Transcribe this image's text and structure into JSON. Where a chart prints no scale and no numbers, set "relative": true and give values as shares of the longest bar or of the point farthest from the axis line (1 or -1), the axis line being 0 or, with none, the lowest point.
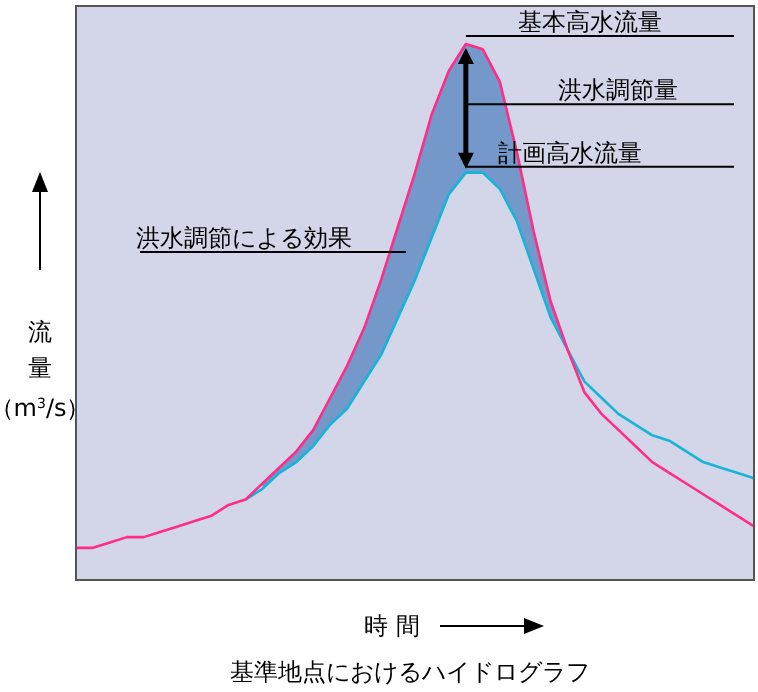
{
  "chart_data": {
    "type": "line",
    "relative": true,
    "title": "基準地点におけるハイドログラフ",
    "xlabel": "時 間",
    "ylabel": "流量（m$^{3}$/s）",
    "categories": [
      null,
      null,
      null,
      null,
      null,
      null,
      null,
      null,
      null,
      null,
      null,
      null,
      null,
      null,
      null,
      null,
      null,
      null,
      null,
      null,
      null,
      null,
      null,
      null,
      null,
      null,
      null,
      null,
      null,
      null,
      null,
      null,
      null,
      null,
      null,
      null,
      null,
      null,
      null,
      null,
      null
    ],
    "series": [
      {
        "name": "基本高水流量",
        "color": "#ff2d87",
        "values": [
          0.06,
          0.06,
          0.07,
          0.08,
          0.08,
          0.09,
          0.1,
          0.11,
          0.12,
          0.14,
          0.15,
          0.18,
          0.21,
          0.24,
          0.28,
          0.34,
          0.4,
          0.47,
          0.56,
          0.66,
          0.76,
          0.87,
          0.95,
          1,
          0.99,
          0.93,
          0.8,
          0.65,
          0.52,
          0.43,
          0.35,
          0.31,
          0.28,
          0.25,
          0.22,
          0.2,
          0.18,
          0.16,
          0.14,
          0.12,
          0.1
        ],
        "lower": [
          null,
          null,
          null,
          null,
          null,
          null,
          null,
          null,
          null,
          null,
          null,
          0.17,
          0.2,
          0.22,
          0.25,
          0.29,
          0.32,
          0.37,
          0.42,
          0.49,
          0.56,
          0.64,
          0.72,
          0.76,
          0.76,
          0.73,
          0.67,
          0.58,
          0.49,
          0.43,
          null,
          null,
          null,
          null,
          null,
          null,
          null,
          null,
          null,
          null,
          null
        ],
        "upper": [
          null,
          null,
          null,
          null,
          null,
          null,
          null,
          null,
          null,
          null,
          null,
          0.18,
          0.21,
          0.24,
          0.28,
          0.34,
          0.4,
          0.47,
          0.56,
          0.66,
          0.76,
          0.87,
          0.95,
          1,
          0.99,
          0.93,
          0.8,
          0.65,
          0.52,
          0.43,
          null,
          null,
          null,
          null,
          null,
          null,
          null,
          null,
          null,
          null,
          null
        ]
      },
      {
        "name": "計画高水流量",
        "color": "#17b4d8",
        "values": [
          null,
          null,
          null,
          null,
          null,
          null,
          null,
          null,
          null,
          null,
          0.15,
          0.17,
          0.2,
          0.22,
          0.25,
          0.29,
          0.32,
          0.37,
          0.42,
          0.49,
          0.56,
          0.64,
          0.72,
          0.76,
          0.76,
          0.73,
          0.67,
          0.58,
          0.49,
          0.43,
          0.37,
          0.34,
          0.31,
          0.29,
          0.27,
          0.26,
          0.24,
          0.22,
          0.21,
          0.2,
          0.19
        ]
      }
    ],
    "annotations": [
      "洪水調節量",
      "洪水調節による効果"
    ]
  }
}
